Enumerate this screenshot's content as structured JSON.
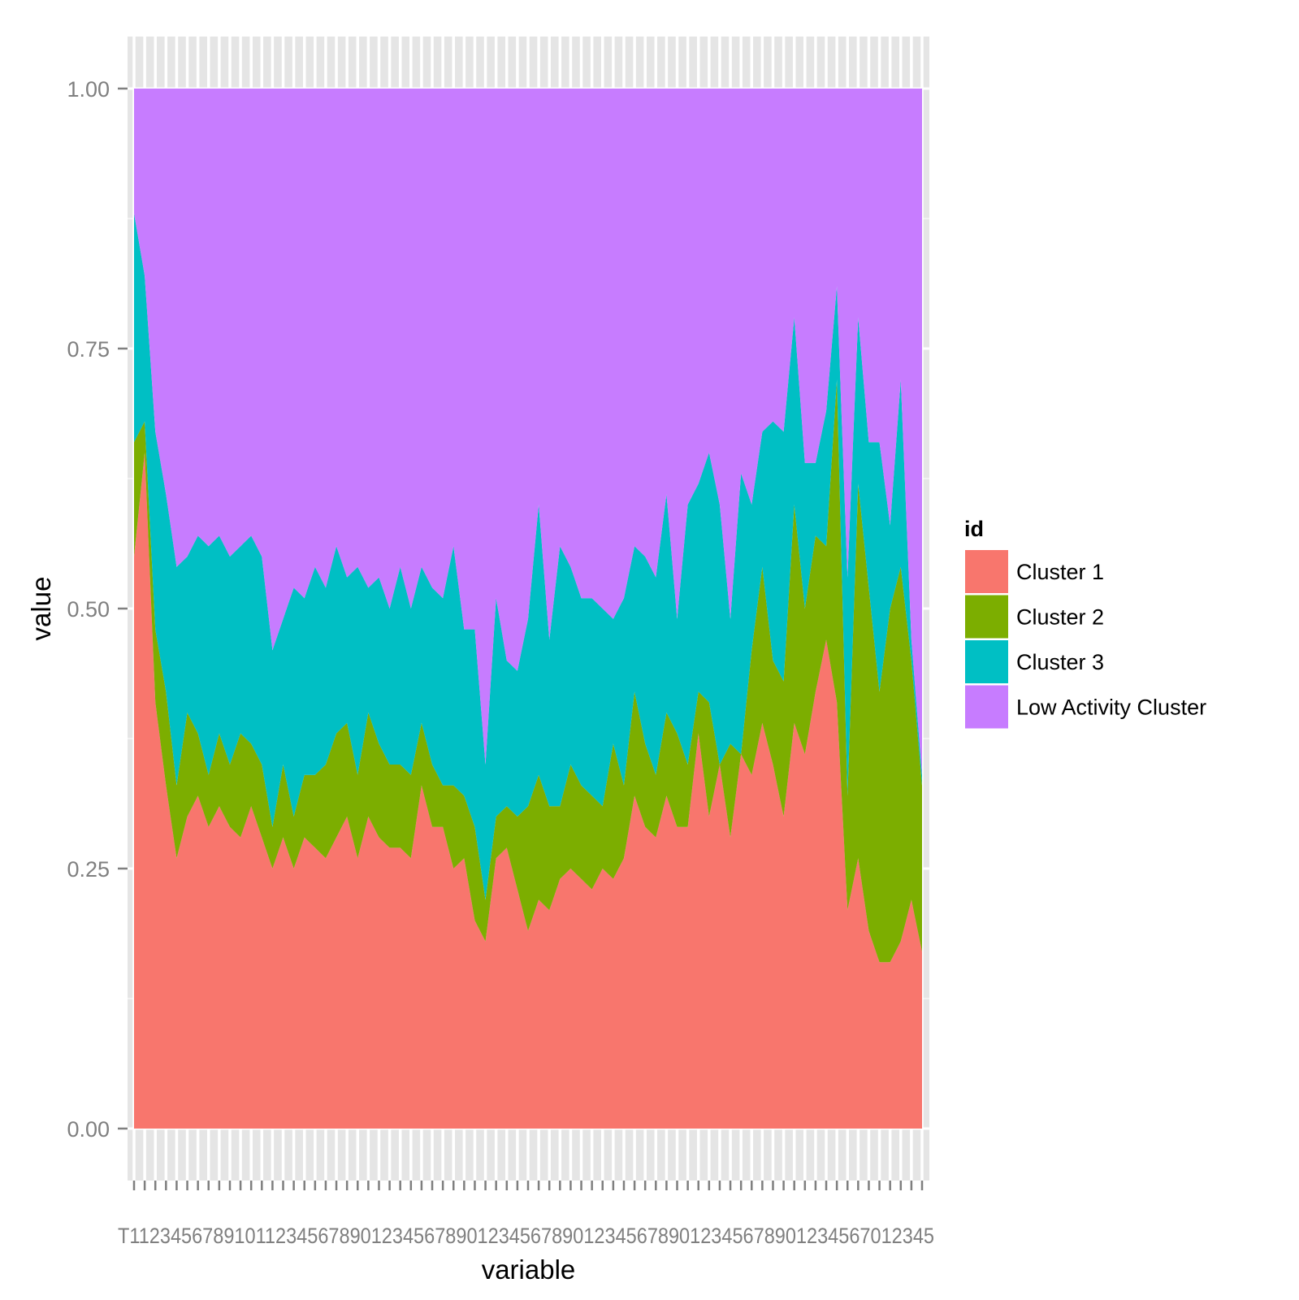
{
  "chart_data": {
    "type": "area",
    "stacked": true,
    "xlabel": "variable",
    "ylabel": "value",
    "ylim": [
      -0.05,
      1.05
    ],
    "yticks": [
      0.0,
      0.25,
      0.5,
      0.75,
      1.0
    ],
    "ytick_labels": [
      "0.00",
      "0.25",
      "0.50",
      "0.75",
      "1.00"
    ],
    "x": [
      "T1",
      "T2",
      "T3",
      "T4",
      "T5",
      "T6",
      "T7",
      "T8",
      "T9",
      "T10",
      "T11",
      "T12",
      "T13",
      "T14",
      "T15",
      "T16",
      "T17",
      "T18",
      "T19",
      "T20",
      "T21",
      "T22",
      "T23",
      "T24",
      "T25",
      "T26",
      "T27",
      "T28",
      "T29",
      "T30",
      "T31",
      "T32",
      "T33",
      "T34",
      "T35",
      "T36",
      "T37",
      "T38",
      "T39",
      "T40",
      "T41",
      "T42",
      "T43",
      "T44",
      "T45",
      "T46",
      "T47",
      "T48",
      "T49",
      "T50",
      "T51",
      "T52",
      "T53",
      "T54",
      "T55",
      "T56",
      "T57",
      "T58",
      "T59",
      "T60",
      "T61",
      "T62",
      "T63",
      "T64",
      "T65",
      "T66",
      "T67",
      "T68",
      "T69",
      "T70",
      "T71",
      "T72",
      "T73",
      "T74",
      "T75"
    ],
    "x_tick_text": "T1123456789101123456789012345678901234567890123456789012345678901234567012345",
    "grid": true,
    "legend": {
      "title": "id",
      "position": "right",
      "entries": [
        "Cluster 1",
        "Cluster 2",
        "Cluster 3",
        "Low Activity Cluster"
      ]
    },
    "colors": [
      "#F8766D",
      "#7CAE00",
      "#00BFC4",
      "#C77CFF"
    ],
    "series": [
      {
        "name": "Cluster 1",
        "values": [
          0.55,
          0.65,
          0.41,
          0.33,
          0.26,
          0.3,
          0.32,
          0.29,
          0.31,
          0.29,
          0.28,
          0.31,
          0.28,
          0.25,
          0.28,
          0.25,
          0.28,
          0.27,
          0.26,
          0.28,
          0.3,
          0.26,
          0.3,
          0.28,
          0.27,
          0.27,
          0.26,
          0.33,
          0.29,
          0.29,
          0.25,
          0.26,
          0.2,
          0.18,
          0.26,
          0.27,
          0.23,
          0.19,
          0.22,
          0.21,
          0.24,
          0.25,
          0.24,
          0.23,
          0.25,
          0.24,
          0.26,
          0.32,
          0.29,
          0.28,
          0.32,
          0.29,
          0.29,
          0.38,
          0.3,
          0.35,
          0.28,
          0.36,
          0.34,
          0.39,
          0.35,
          0.3,
          0.39,
          0.36,
          0.42,
          0.47,
          0.41,
          0.21,
          0.26,
          0.19,
          0.16,
          0.16,
          0.18,
          0.22,
          0.17
        ]
      },
      {
        "name": "Cluster 2",
        "values": [
          0.11,
          0.03,
          0.07,
          0.09,
          0.07,
          0.1,
          0.06,
          0.05,
          0.07,
          0.06,
          0.1,
          0.06,
          0.07,
          0.04,
          0.07,
          0.05,
          0.06,
          0.07,
          0.09,
          0.1,
          0.09,
          0.08,
          0.1,
          0.09,
          0.08,
          0.08,
          0.08,
          0.06,
          0.06,
          0.04,
          0.08,
          0.06,
          0.09,
          0.04,
          0.04,
          0.04,
          0.07,
          0.12,
          0.12,
          0.1,
          0.07,
          0.1,
          0.09,
          0.09,
          0.06,
          0.13,
          0.07,
          0.1,
          0.08,
          0.06,
          0.08,
          0.09,
          0.06,
          0.04,
          0.11,
          0.0,
          0.09,
          0.0,
          0.12,
          0.15,
          0.1,
          0.13,
          0.21,
          0.14,
          0.15,
          0.09,
          0.31,
          0.11,
          0.36,
          0.33,
          0.26,
          0.34,
          0.36,
          0.23,
          0.16
        ]
      },
      {
        "name": "Cluster 3",
        "values": [
          0.22,
          0.14,
          0.19,
          0.19,
          0.21,
          0.15,
          0.19,
          0.22,
          0.19,
          0.2,
          0.18,
          0.2,
          0.2,
          0.17,
          0.14,
          0.22,
          0.17,
          0.2,
          0.17,
          0.18,
          0.14,
          0.2,
          0.12,
          0.16,
          0.15,
          0.19,
          0.16,
          0.15,
          0.17,
          0.18,
          0.23,
          0.16,
          0.19,
          0.13,
          0.21,
          0.14,
          0.14,
          0.18,
          0.26,
          0.16,
          0.25,
          0.19,
          0.18,
          0.19,
          0.19,
          0.12,
          0.18,
          0.14,
          0.18,
          0.19,
          0.21,
          0.11,
          0.25,
          0.2,
          0.24,
          0.25,
          0.12,
          0.27,
          0.14,
          0.13,
          0.23,
          0.24,
          0.18,
          0.14,
          0.07,
          0.13,
          0.09,
          0.21,
          0.16,
          0.14,
          0.24,
          0.08,
          0.18,
          0.02,
          0.01
        ]
      },
      {
        "name": "Low Activity Cluster",
        "values": [
          0.12,
          0.18,
          0.33,
          0.39,
          0.46,
          0.45,
          0.43,
          0.44,
          0.43,
          0.45,
          0.44,
          0.43,
          0.45,
          0.54,
          0.51,
          0.48,
          0.49,
          0.46,
          0.48,
          0.44,
          0.47,
          0.46,
          0.48,
          0.47,
          0.5,
          0.46,
          0.5,
          0.46,
          0.48,
          0.49,
          0.44,
          0.52,
          0.52,
          0.65,
          0.49,
          0.55,
          0.56,
          0.51,
          0.4,
          0.53,
          0.44,
          0.46,
          0.49,
          0.49,
          0.5,
          0.51,
          0.49,
          0.44,
          0.45,
          0.47,
          0.39,
          0.51,
          0.4,
          0.38,
          0.35,
          0.4,
          0.51,
          0.37,
          0.4,
          0.33,
          0.32,
          0.33,
          0.22,
          0.36,
          0.36,
          0.31,
          0.19,
          0.47,
          0.22,
          0.34,
          0.34,
          0.42,
          0.28,
          0.53,
          0.66
        ]
      }
    ]
  }
}
